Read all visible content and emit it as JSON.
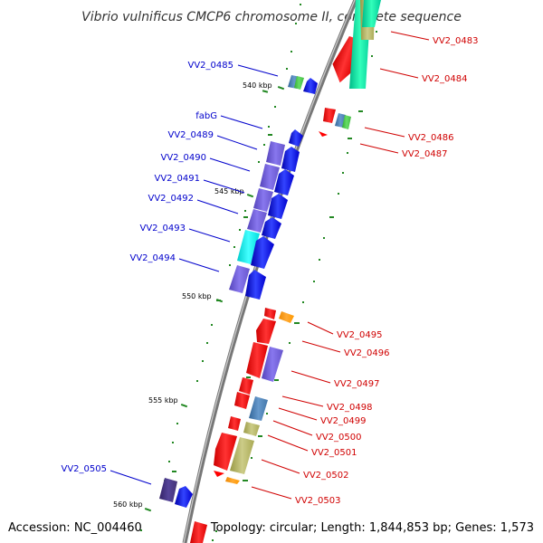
{
  "title": "Vibrio vulnificus CMCP6 chromosome II, complete sequence",
  "footer": {
    "accession": "Accession: NC_004460",
    "topology": "Topology: circular; Length: 1,844,853 bp; Genes: 1,573"
  },
  "scale_labels": [
    "540 kbp",
    "545 kbp",
    "550 kbp",
    "555 kbp",
    "560 kbp"
  ],
  "genes_reverse": [
    {
      "label": "VV2_0485"
    },
    {
      "label": "fabG"
    },
    {
      "label": "VV2_0489"
    },
    {
      "label": "VV2_0490"
    },
    {
      "label": "VV2_0491"
    },
    {
      "label": "VV2_0492"
    },
    {
      "label": "VV2_0493"
    },
    {
      "label": "VV2_0494"
    },
    {
      "label": "VV2_0505"
    }
  ],
  "genes_forward": [
    {
      "label": "VV2_0483"
    },
    {
      "label": "VV2_0484"
    },
    {
      "label": "VV2_0486"
    },
    {
      "label": "VV2_0487"
    },
    {
      "label": "VV2_0495"
    },
    {
      "label": "VV2_0496"
    },
    {
      "label": "VV2_0497"
    },
    {
      "label": "VV2_0498"
    },
    {
      "label": "VV2_0499"
    },
    {
      "label": "VV2_0500"
    },
    {
      "label": "VV2_0501"
    },
    {
      "label": "VV2_0502"
    },
    {
      "label": "VV2_0503"
    }
  ],
  "colors": {
    "forward_strand": "#ff0000",
    "reverse_strand": "#0000ff",
    "forward_label": "#d00000",
    "reverse_label": "#0000cc",
    "backbone": "#888888",
    "tick": "#22aa22"
  }
}
